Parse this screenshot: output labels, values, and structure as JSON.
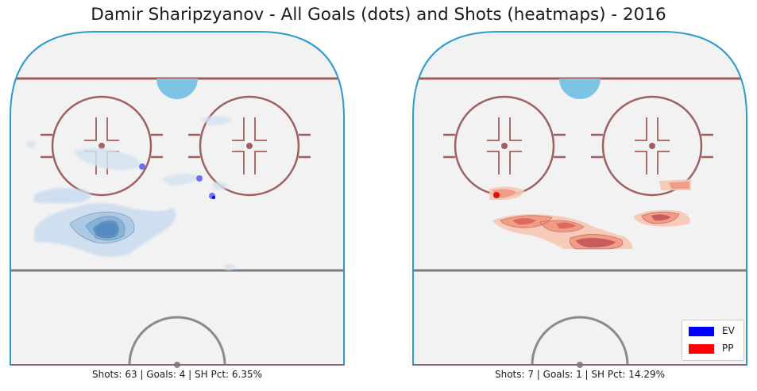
{
  "title": "Damir Sharipzyanov - All Goals (dots) and Shots (heatmaps) - 2016",
  "legend": {
    "items": [
      {
        "label": "EV",
        "color": "#0000ff"
      },
      {
        "label": "PP",
        "color": "#ff0000"
      }
    ]
  },
  "chart_data": [
    {
      "type": "heatmap",
      "panel": "left",
      "caption": "Shots: 63 | Goals: 4 | SH Pct: 6.35%",
      "strength": "EV",
      "colormap": "Blues",
      "shots": 63,
      "goals": 4,
      "sh_pct": 6.35
    },
    {
      "type": "heatmap",
      "panel": "right",
      "caption": "Shots: 7 | Goals: 1 | SH Pct: 14.29%",
      "strength": "PP",
      "colormap": "Reds",
      "shots": 7,
      "goals": 1,
      "sh_pct": 14.29
    }
  ]
}
